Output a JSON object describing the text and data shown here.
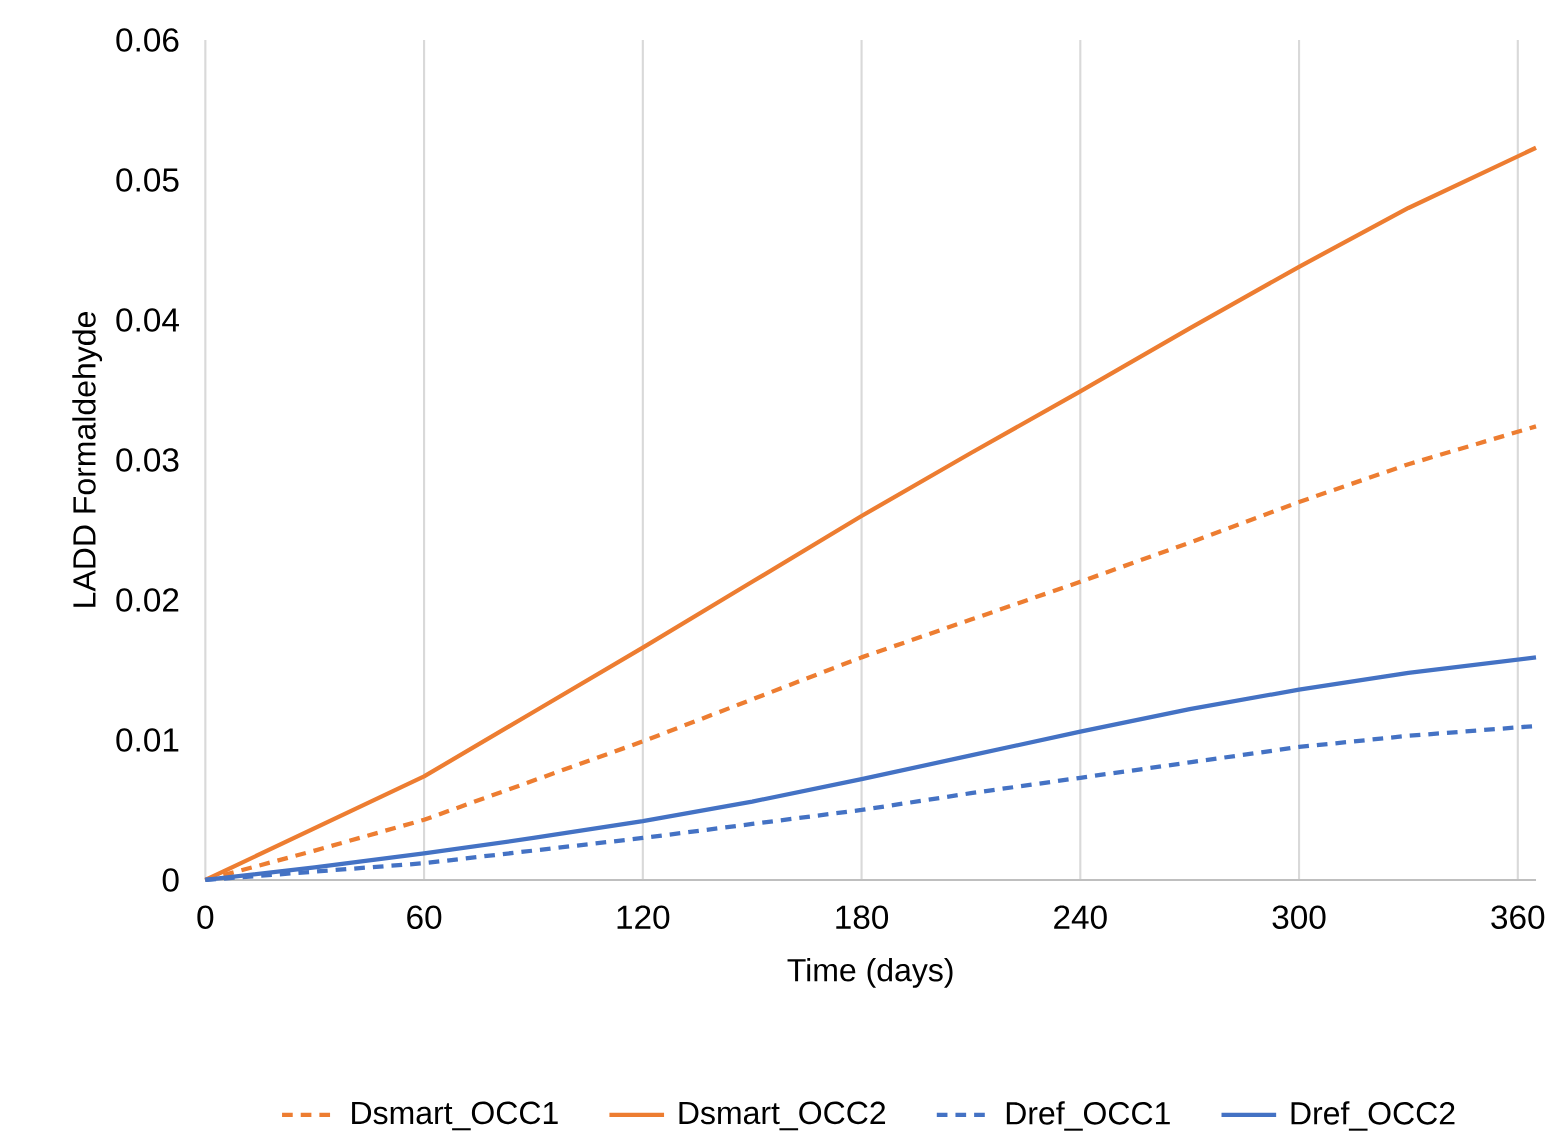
{
  "chart_data": {
    "type": "line",
    "xlabel": "Time (days)",
    "ylabel": "LADD Formaldehyde",
    "x": [
      0,
      30,
      60,
      90,
      120,
      150,
      180,
      210,
      240,
      270,
      300,
      330,
      365
    ],
    "series": [
      {
        "name": "Dsmart_OCC1",
        "color": "#ed7d31",
        "line_style": "dashed",
        "values": [
          0,
          0.0021,
          0.0043,
          0.0071,
          0.0099,
          0.0129,
          0.0159,
          0.0186,
          0.0213,
          0.0241,
          0.027,
          0.0297,
          0.0324
        ]
      },
      {
        "name": "Dsmart_OCC2",
        "color": "#ed7d31",
        "line_style": "solid",
        "values": [
          0,
          0.0037,
          0.0074,
          0.012,
          0.0166,
          0.0213,
          0.026,
          0.0305,
          0.0349,
          0.0394,
          0.0438,
          0.048,
          0.0523
        ]
      },
      {
        "name": "Dref_OCC1",
        "color": "#4472c4",
        "line_style": "dashed",
        "values": [
          0,
          0.0006,
          0.0012,
          0.0021,
          0.003,
          0.004,
          0.005,
          0.0062,
          0.0073,
          0.0084,
          0.0095,
          0.0103,
          0.011
        ]
      },
      {
        "name": "Dref_OCC2",
        "color": "#4472c4",
        "line_style": "solid",
        "values": [
          0,
          0.0009,
          0.0019,
          0.003,
          0.0042,
          0.0056,
          0.0072,
          0.0089,
          0.0106,
          0.0122,
          0.0136,
          0.0148,
          0.0159
        ]
      }
    ],
    "xlim": [
      0,
      365
    ],
    "xticks": [
      0,
      60,
      120,
      180,
      240,
      300,
      360
    ],
    "ylim": [
      0,
      0.06
    ],
    "yticks": [
      0,
      0.01,
      0.02,
      0.03,
      0.04,
      0.05,
      0.06
    ],
    "grid": "x",
    "legend": "bottom"
  }
}
